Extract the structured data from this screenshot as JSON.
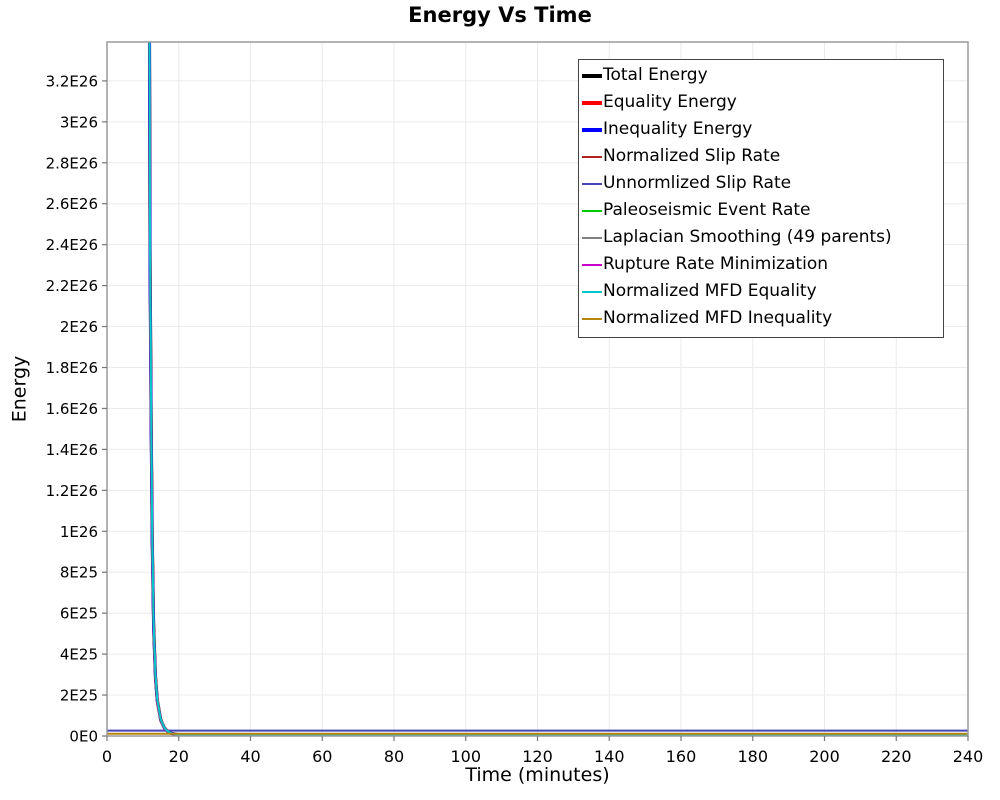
{
  "chart_data": {
    "type": "line",
    "title": "Energy Vs Time",
    "xlabel": "Time (minutes)",
    "ylabel": "Energy",
    "xlim": [
      0,
      240
    ],
    "ylim": [
      0,
      3.39e+26
    ],
    "grid": true,
    "legend_position": "top-right",
    "background_color": "#ffffff",
    "grid_color": "#ebebeb",
    "border_color": "#9a9a9a",
    "tick_color": "#777777",
    "x_ticks": [
      0,
      20,
      40,
      60,
      80,
      100,
      120,
      140,
      160,
      180,
      200,
      220,
      240
    ],
    "y_ticks": {
      "labels": [
        "0E0",
        "2E25",
        "4E25",
        "6E25",
        "8E25",
        "1E26",
        "1.2E26",
        "1.4E26",
        "1.6E26",
        "1.8E26",
        "2E26",
        "2.2E26",
        "2.4E26",
        "2.6E26",
        "2.8E26",
        "3E26",
        "3.2E26"
      ],
      "values": [
        0,
        2e+25,
        4e+25,
        6e+25,
        8e+25,
        1e+26,
        1.2e+26,
        1.4e+26,
        1.6e+26,
        1.8e+26,
        2e+26,
        2.2e+26,
        2.4e+26,
        2.6e+26,
        2.8e+26,
        3e+26,
        3.2e+26
      ]
    },
    "x": [
      0,
      4,
      8,
      10,
      11.5,
      12,
      12.3,
      12.6,
      13,
      13.5,
      14,
      15,
      16,
      17,
      18,
      20,
      22,
      25,
      30,
      40,
      60,
      80,
      100,
      120,
      140,
      160,
      180,
      200,
      220,
      240
    ],
    "series": [
      {
        "name": "Total Energy",
        "color": "#000000",
        "width": 3,
        "values": [
          null,
          null,
          null,
          null,
          6e+26,
          2.4e+26,
          1.6e+26,
          1e+26,
          5.5e+25,
          3e+25,
          1.8e+25,
          8e+24,
          4e+24,
          2.2e+24,
          1.3e+24,
          6e+23,
          4e+23,
          3e+23,
          2.6e+23,
          2.4e+23,
          2.3e+23,
          2.3e+23,
          2.3e+23,
          2.3e+23,
          2.3e+23,
          2.3e+23,
          2.3e+23,
          2.3e+23,
          2.3e+23,
          2.3e+23
        ]
      },
      {
        "name": "Equality Energy",
        "color": "#ff0000",
        "width": 3,
        "values": [
          null,
          null,
          null,
          null,
          5.82e+26,
          2.33e+26,
          1.55e+26,
          9.7e+25,
          5.34e+25,
          2.91e+25,
          1.75e+25,
          7.76e+24,
          3.88e+24,
          2.13e+24,
          1.26e+24,
          5.82e+23,
          3.88e+23,
          2.91e+23,
          2.52e+23,
          2.33e+23,
          2.23e+23,
          2.23e+23,
          2.23e+23,
          2.23e+23,
          2.23e+23,
          2.23e+23,
          2.23e+23,
          2.23e+23,
          2.23e+23,
          2.23e+23
        ]
      },
      {
        "name": "Inequality Energy",
        "color": "#0000ff",
        "width": 3,
        "values": [
          null,
          null,
          null,
          null,
          5.64e+26,
          2.26e+26,
          1.5e+26,
          9.4e+25,
          5.17e+25,
          2.82e+25,
          1.69e+25,
          7.52e+24,
          3.76e+24,
          2.07e+24,
          1.22e+24,
          5.64e+23,
          3.76e+23,
          2.82e+23,
          2.44e+23,
          2.26e+23,
          2.16e+23,
          2.16e+23,
          2.16e+23,
          2.16e+23,
          2.16e+23,
          2.16e+23,
          2.16e+23,
          2.16e+23,
          2.16e+23,
          2.16e+23
        ]
      },
      {
        "name": "Normalized Slip Rate",
        "color": "#b22222",
        "width": 2,
        "values": [
          null,
          null,
          null,
          null,
          5.16e+26,
          2.06e+26,
          1.38e+26,
          8.6e+25,
          4.73e+25,
          2.58e+25,
          1.55e+25,
          6.88e+24,
          3.44e+24,
          1.89e+24,
          1.12e+24,
          5.16e+23,
          3.44e+23,
          2.58e+23,
          2.24e+23,
          2.06e+23,
          1.98e+23,
          1.98e+23,
          1.98e+23,
          1.98e+23,
          1.98e+23,
          1.98e+23,
          1.98e+23,
          1.98e+23,
          1.98e+23,
          1.98e+23
        ]
      },
      {
        "name": "Unnormlized Slip Rate",
        "color": "#4444bb",
        "width": 2,
        "values": [
          2.6e+24,
          2.6e+24,
          2.6e+24,
          2.6e+24,
          2.6e+24,
          2.6e+24,
          2.6e+24,
          2.6e+24,
          2.6e+24,
          2.6e+24,
          2.6e+24,
          2.6e+24,
          2.6e+24,
          2.6e+24,
          2.6e+24,
          2.6e+24,
          2.6e+24,
          2.6e+24,
          2.6e+24,
          2.6e+24,
          2.6e+24,
          2.6e+24,
          2.6e+24,
          2.6e+24,
          2.6e+24,
          2.6e+24,
          2.6e+24,
          2.6e+24,
          2.6e+24,
          2.6e+24
        ]
      },
      {
        "name": "Paleoseismic Event Rate",
        "color": "#00cc00",
        "width": 2,
        "values": [
          null,
          null,
          null,
          null,
          5.4e+26,
          2.16e+26,
          1.44e+26,
          9e+25,
          4.95e+25,
          2.7e+25,
          1.62e+25,
          7.2e+24,
          3.6e+24,
          1.98e+24,
          1.17e+24,
          5.4e+23,
          3.6e+23,
          2.7e+23,
          2.34e+23,
          2.16e+23,
          2.07e+23,
          2.07e+23,
          2.07e+23,
          2.07e+23,
          2.07e+23,
          2.07e+23,
          2.07e+23,
          2.07e+23,
          2.07e+23,
          2.07e+23
        ]
      },
      {
        "name": "Laplacian Smoothing (49 parents)",
        "color": "#808080",
        "width": 2,
        "values": [
          null,
          null,
          null,
          null,
          6.18e+26,
          2.47e+26,
          1.65e+26,
          1.03e+26,
          5.67e+25,
          3.09e+25,
          1.85e+25,
          8.24e+24,
          4.12e+24,
          2.27e+24,
          1.34e+24,
          6.18e+23,
          4.12e+23,
          3.09e+23,
          2.68e+23,
          2.47e+23,
          2.37e+23,
          2.37e+23,
          2.37e+23,
          2.37e+23,
          2.37e+23,
          2.37e+23,
          2.37e+23,
          2.37e+23,
          2.37e+23,
          2.37e+23
        ]
      },
      {
        "name": "Rupture Rate Minimization",
        "color": "#cc00cc",
        "width": 2,
        "values": [
          null,
          null,
          null,
          null,
          5.52e+26,
          2.21e+26,
          1.47e+26,
          9.2e+25,
          5.06e+25,
          2.76e+25,
          1.66e+25,
          7.36e+24,
          3.68e+24,
          2.02e+24,
          1.2e+24,
          5.52e+23,
          3.68e+23,
          2.76e+23,
          2.39e+23,
          2.21e+23,
          2.12e+23,
          2.12e+23,
          2.12e+23,
          2.12e+23,
          2.12e+23,
          2.12e+23,
          2.12e+23,
          2.12e+23,
          2.12e+23,
          2.12e+23
        ]
      },
      {
        "name": "Normalized MFD Equality",
        "color": "#00c8c8",
        "width": 2,
        "values": [
          null,
          null,
          null,
          null,
          5.97e+26,
          2.39e+26,
          1.59e+26,
          9.95e+25,
          5.47e+25,
          2.99e+25,
          1.79e+25,
          7.96e+24,
          3.98e+24,
          2.19e+24,
          1.29e+24,
          5.97e+23,
          3.98e+23,
          2.99e+23,
          2.59e+23,
          2.39e+23,
          2.29e+23,
          2.29e+23,
          2.29e+23,
          2.29e+23,
          2.29e+23,
          2.29e+23,
          2.29e+23,
          2.29e+23,
          2.29e+23,
          2.29e+23
        ]
      },
      {
        "name": "Normalized MFD Inequality",
        "color": "#b8860b",
        "width": 2,
        "values": [
          1.1e+24,
          1.1e+24,
          1.1e+24,
          1.1e+24,
          1.1e+24,
          1.1e+24,
          1.1e+24,
          1.1e+24,
          1.1e+24,
          1.1e+24,
          1.1e+24,
          1.1e+24,
          1.1e+24,
          1.1e+24,
          1.1e+24,
          1.1e+24,
          1.1e+24,
          1.1e+24,
          1.1e+24,
          1.1e+24,
          1.1e+24,
          1.1e+24,
          1.1e+24,
          1.1e+24,
          1.1e+24,
          1.1e+24,
          1.1e+24,
          1.1e+24,
          1.1e+24,
          1.1e+24
        ]
      }
    ]
  }
}
